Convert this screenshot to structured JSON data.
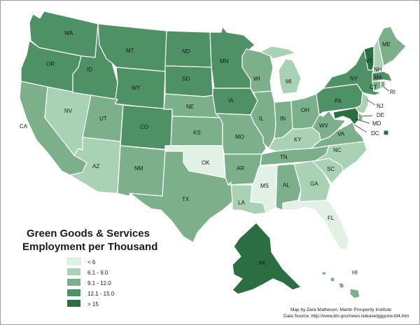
{
  "title_line1": "Green Goods & Services",
  "title_line2": "Employment per Thousand",
  "credit_line1": "Map by Zara Matheson, Martin Prosperity Institute",
  "credit_line2": "Data Source: http://www.bls.gov/news.release/gggcew.t04.htm",
  "colors": {
    "c1": "#e2f1e6",
    "c2": "#a9d1b4",
    "c3": "#7bb08a",
    "c4": "#4e9165",
    "c5": "#2b6e42"
  },
  "legend": [
    {
      "label": "< 6",
      "class": "c1"
    },
    {
      "label": "6.1 - 9.0",
      "class": "c2"
    },
    {
      "label": "9.1 - 12.0",
      "class": "c3"
    },
    {
      "label": "12.1 - 15.0",
      "class": "c4"
    },
    {
      "label": "> 15",
      "class": "c5"
    }
  ],
  "states": [
    {
      "abbr": "WA",
      "class": "c4"
    },
    {
      "abbr": "OR",
      "class": "c4"
    },
    {
      "abbr": "CA",
      "class": "c3"
    },
    {
      "abbr": "NV",
      "class": "c2"
    },
    {
      "abbr": "ID",
      "class": "c4"
    },
    {
      "abbr": "MT",
      "class": "c4"
    },
    {
      "abbr": "WY",
      "class": "c4"
    },
    {
      "abbr": "UT",
      "class": "c3"
    },
    {
      "abbr": "AZ",
      "class": "c2"
    },
    {
      "abbr": "CO",
      "class": "c4"
    },
    {
      "abbr": "NM",
      "class": "c3"
    },
    {
      "abbr": "ND",
      "class": "c4"
    },
    {
      "abbr": "SD",
      "class": "c4"
    },
    {
      "abbr": "NE",
      "class": "c3"
    },
    {
      "abbr": "KS",
      "class": "c3"
    },
    {
      "abbr": "OK",
      "class": "c1"
    },
    {
      "abbr": "TX",
      "class": "c3"
    },
    {
      "abbr": "MN",
      "class": "c4"
    },
    {
      "abbr": "IA",
      "class": "c4"
    },
    {
      "abbr": "MO",
      "class": "c3"
    },
    {
      "abbr": "AR",
      "class": "c3"
    },
    {
      "abbr": "LA",
      "class": "c2"
    },
    {
      "abbr": "WI",
      "class": "c3"
    },
    {
      "abbr": "IL",
      "class": "c3"
    },
    {
      "abbr": "MI",
      "class": "c2"
    },
    {
      "abbr": "IN",
      "class": "c3"
    },
    {
      "abbr": "OH",
      "class": "c3"
    },
    {
      "abbr": "KY",
      "class": "c2"
    },
    {
      "abbr": "TN",
      "class": "c3"
    },
    {
      "abbr": "MS",
      "class": "c1"
    },
    {
      "abbr": "AL",
      "class": "c3"
    },
    {
      "abbr": "GA",
      "class": "c2"
    },
    {
      "abbr": "FL",
      "class": "c1"
    },
    {
      "abbr": "SC",
      "class": "c2"
    },
    {
      "abbr": "NC",
      "class": "c2"
    },
    {
      "abbr": "VA",
      "class": "c3"
    },
    {
      "abbr": "WV",
      "class": "c3"
    },
    {
      "abbr": "PA",
      "class": "c4"
    },
    {
      "abbr": "NY",
      "class": "c4"
    },
    {
      "abbr": "VT",
      "class": "c5"
    },
    {
      "abbr": "NH",
      "class": "c2"
    },
    {
      "abbr": "ME",
      "class": "c3"
    },
    {
      "abbr": "MA",
      "class": "c4"
    },
    {
      "abbr": "CT",
      "class": "c3"
    },
    {
      "abbr": "RI",
      "class": "c3"
    },
    {
      "abbr": "NJ",
      "class": "c2"
    },
    {
      "abbr": "DE",
      "class": "c3"
    },
    {
      "abbr": "MD",
      "class": "c5"
    },
    {
      "abbr": "DC",
      "class": "c5"
    },
    {
      "abbr": "AK",
      "class": "c5"
    },
    {
      "abbr": "HI",
      "class": "c3"
    }
  ]
}
